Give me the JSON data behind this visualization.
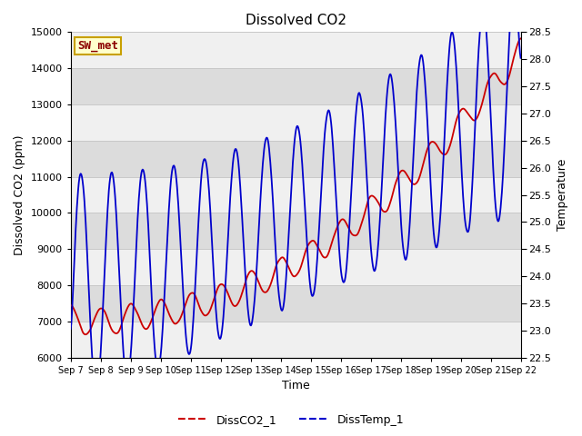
{
  "title": "Dissolved CO2",
  "xlabel": "Time",
  "ylabel_left": "Dissolved CO2 (ppm)",
  "ylabel_right": "Temperature",
  "label_box": "SW_met",
  "legend_labels": [
    "DissCO2_1",
    "DissTemp_1"
  ],
  "co2_color": "#cc0000",
  "temp_color": "#0000cc",
  "ylim_left": [
    6000,
    15000
  ],
  "ylim_right": [
    22.5,
    28.5
  ],
  "xtick_labels": [
    "Sep 7",
    "Sep 8",
    "Sep 9",
    "Sep 10",
    "Sep 11",
    "Sep 12",
    "Sep 13",
    "Sep 14",
    "Sep 15",
    "Sep 16",
    "Sep 17",
    "Sep 18",
    "Sep 19",
    "Sep 20",
    "Sep 21",
    "Sep 22"
  ],
  "yticks_left": [
    6000,
    7000,
    8000,
    9000,
    10000,
    11000,
    12000,
    13000,
    14000,
    15000
  ],
  "yticks_right": [
    22.5,
    23.0,
    23.5,
    24.0,
    24.5,
    25.0,
    25.5,
    26.0,
    26.5,
    27.0,
    27.5,
    28.0,
    28.5
  ],
  "band_light": "#f0f0f0",
  "band_dark": "#dcdcdc",
  "facecolor": "#e8e8e8",
  "hline_color": "#c8c8c8"
}
